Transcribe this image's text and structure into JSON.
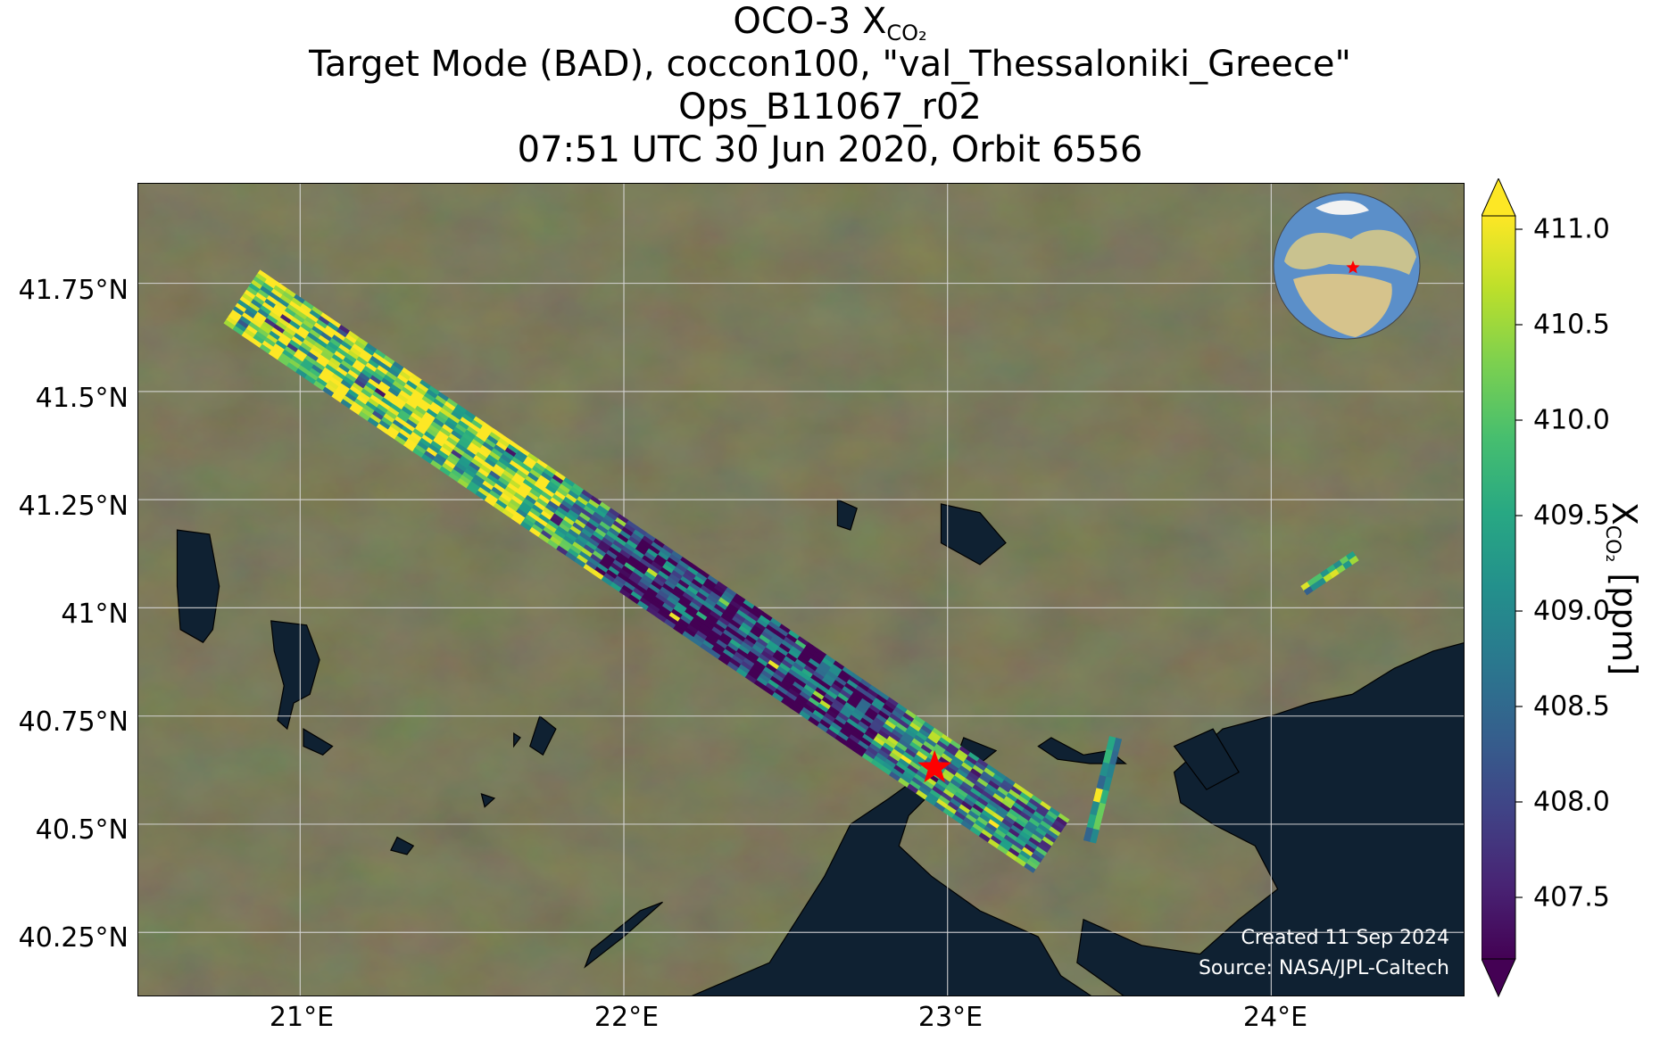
{
  "title": {
    "line1_main": "OCO-3 X",
    "line1_sub": "CO₂",
    "line2": "Target Mode (BAD), coccon100, \"val_Thessaloniki_Greece\"",
    "line3": "Ops_B11067_r02",
    "line4": "07:51 UTC 30 Jun 2020, Orbit 6556"
  },
  "axes": {
    "lat_ticks": [
      "41.75°N",
      "41.5°N",
      "41.25°N",
      "41°N",
      "40.75°N",
      "40.5°N",
      "40.25°N"
    ],
    "lon_ticks": [
      "21°E",
      "22°E",
      "23°E",
      "24°E"
    ]
  },
  "credits": {
    "created": "Created 11 Sep 2024",
    "source": "Source: NASA/JPL-Caltech"
  },
  "colorbar": {
    "ticks": [
      "411.0",
      "410.5",
      "410.0",
      "409.5",
      "409.0",
      "408.5",
      "408.0",
      "407.5"
    ],
    "label_main": "X",
    "label_sub": "CO₂",
    "label_unit": " [ppm]",
    "colormap": "viridis",
    "extend": "both",
    "range": [
      407.2,
      411.2
    ]
  },
  "map_data": {
    "extent": {
      "lon": [
        20.5,
        24.6
      ],
      "lat": [
        40.1,
        41.98
      ]
    },
    "target": {
      "name": "val_Thessaloniki_Greece",
      "lon": 22.96,
      "lat": 40.63,
      "marker_color": "#ff0000"
    },
    "swath": {
      "start": {
        "lon": 20.82,
        "lat": 41.72
      },
      "end": {
        "lon": 23.32,
        "lat": 40.45
      }
    },
    "colors": {
      "land": "#6b6a4c",
      "water": "#0f2132",
      "grid": "#d8d8d8"
    }
  }
}
